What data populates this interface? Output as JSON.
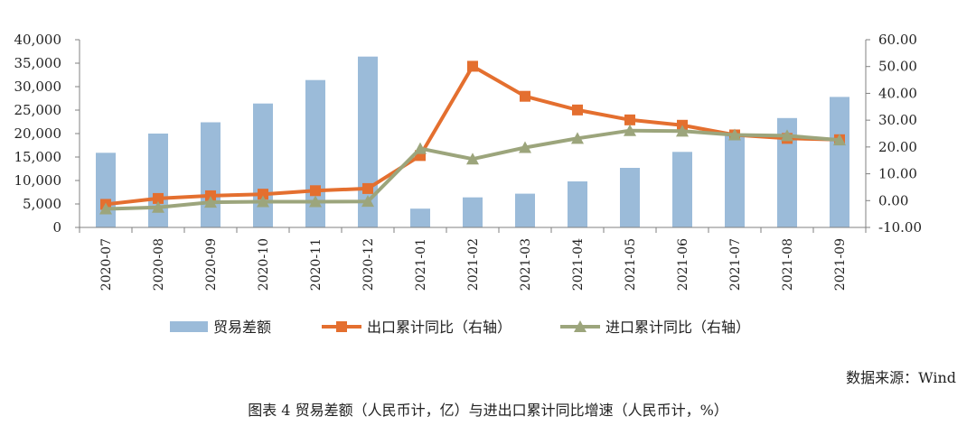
{
  "chart_data": {
    "type": "bar+line",
    "categories": [
      "2020-07",
      "2020-08",
      "2020-09",
      "2020-10",
      "2020-11",
      "2020-12",
      "2021-01",
      "2021-02",
      "2021-03",
      "2021-04",
      "2021-05",
      "2021-06",
      "2021-07",
      "2021-08",
      "2021-09"
    ],
    "series": [
      {
        "name": "贸易差额",
        "type": "bar",
        "axis": "left",
        "color": "#9bbbd9",
        "values": [
          15900,
          20000,
          22400,
          26400,
          31400,
          36400,
          4000,
          6400,
          7200,
          9800,
          12700,
          16100,
          19500,
          23300,
          27800
        ]
      },
      {
        "name": "出口累计同比（右轴）",
        "type": "line",
        "axis": "right",
        "color": "#e46f2f",
        "marker": "square",
        "values": [
          -1.4,
          0.8,
          1.8,
          2.4,
          3.7,
          4.5,
          16.8,
          50.1,
          38.9,
          33.8,
          30.1,
          28.1,
          24.5,
          23.2,
          22.7
        ]
      },
      {
        "name": "进口累计同比（右轴）",
        "type": "line",
        "axis": "right",
        "color": "#9ca57c",
        "marker": "triangle",
        "values": [
          -3.1,
          -2.5,
          -0.6,
          -0.4,
          -0.4,
          -0.3,
          19.4,
          15.5,
          19.8,
          23.2,
          26.1,
          25.9,
          24.5,
          24.2,
          22.6
        ]
      }
    ],
    "y_left": {
      "min": 0,
      "max": 40000,
      "ticks": [
        0,
        5000,
        10000,
        15000,
        20000,
        25000,
        30000,
        35000,
        40000
      ],
      "tick_labels": [
        "0",
        "5,000",
        "10,000",
        "15,000",
        "20,000",
        "25,000",
        "30,000",
        "35,000",
        "40,000"
      ]
    },
    "y_right": {
      "min": -10,
      "max": 60,
      "ticks": [
        -10,
        0,
        10,
        20,
        30,
        40,
        50,
        60
      ],
      "tick_labels": [
        "-10.00",
        "0.00",
        "10.00",
        "20.00",
        "30.00",
        "40.00",
        "50.00",
        "60.00"
      ]
    },
    "legend_position": "bottom",
    "source": "数据来源：Wind",
    "caption": "图表 4 贸易差额（人民币计，亿）与进出口累计同比增速（人民币计，%）"
  }
}
